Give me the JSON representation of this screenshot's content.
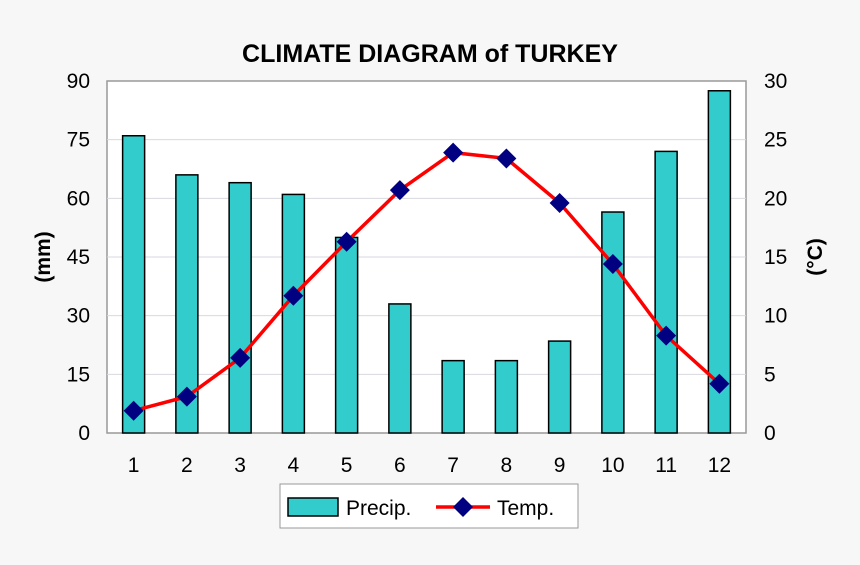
{
  "chart_data": {
    "type": "bar+line",
    "title": "CLIMATE DIAGRAM of TURKEY",
    "xlabel": "",
    "ylabel_left": "(mm)",
    "ylabel_right": "(°C)",
    "categories": [
      "1",
      "2",
      "3",
      "4",
      "5",
      "6",
      "7",
      "8",
      "9",
      "10",
      "11",
      "12"
    ],
    "ylim_left": [
      0,
      90
    ],
    "yticks_left": [
      "0",
      "15",
      "30",
      "45",
      "60",
      "75",
      "90"
    ],
    "ylim_right": [
      0,
      30
    ],
    "yticks_right": [
      "0",
      "5",
      "10",
      "15",
      "20",
      "25",
      "30"
    ],
    "grid": true,
    "legend_position": "bottom",
    "series": [
      {
        "name": "Precip.",
        "type": "bar",
        "axis": "left",
        "color": "#33CCCC",
        "values": [
          76,
          66,
          64,
          61,
          50,
          33,
          18.5,
          18.5,
          23.5,
          56.5,
          72,
          87.5
        ]
      },
      {
        "name": "Temp.",
        "type": "line",
        "axis": "right",
        "color": "#FF0000",
        "marker_color": "#000080",
        "values": [
          1.9,
          3.1,
          6.4,
          11.7,
          16.3,
          20.7,
          23.9,
          23.4,
          19.6,
          14.4,
          8.3,
          4.2
        ]
      }
    ]
  }
}
